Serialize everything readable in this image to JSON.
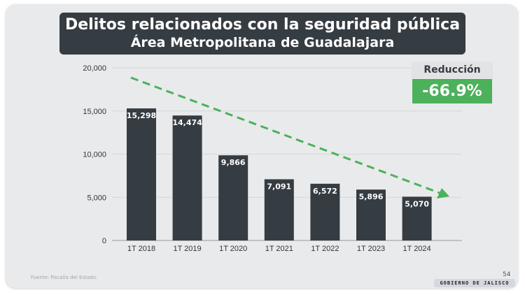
{
  "header": {
    "title": "Delitos relacionados con la seguridad pública",
    "subtitle": "Área Metropolitana de Guadalajara"
  },
  "reduction": {
    "label": "Reducción",
    "value": "-66.9%",
    "color": "#4cb15a"
  },
  "footer": {
    "source": "Fuente: Fiscalía del Estado.",
    "page": "54",
    "logo": "GOBIERNO DE JALISCO"
  },
  "chart_data": {
    "type": "bar",
    "categories": [
      "1T 2018",
      "1T 2019",
      "1T 2020",
      "1T 2021",
      "1T 2022",
      "1T 2023",
      "1T 2024"
    ],
    "values": [
      15298,
      14474,
      9866,
      7091,
      6572,
      5896,
      5070
    ],
    "data_labels": [
      "15,298",
      "14,474",
      "9,866",
      "7,091",
      "6,572",
      "5,896",
      "5,070"
    ],
    "ylim": [
      0,
      20000
    ],
    "yticks": [
      "0",
      "5,000",
      "10,000",
      "15,000",
      "20,000"
    ],
    "ytick_values": [
      0,
      5000,
      10000,
      15000,
      20000
    ],
    "grid": true,
    "bar_color": "#353c42",
    "trend_line": {
      "style": "dashed arrow",
      "direction": "downward",
      "color": "#4cb15a"
    }
  }
}
